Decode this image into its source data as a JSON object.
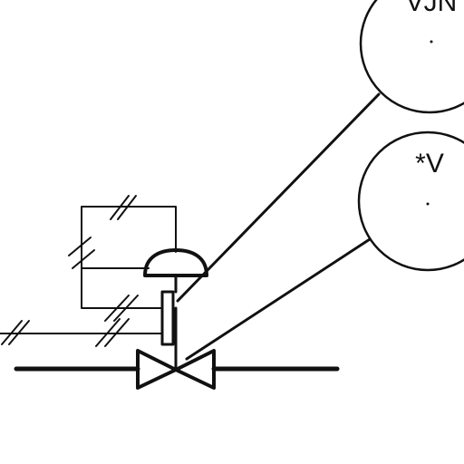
{
  "bubbles": {
    "top": {
      "label": "VJN"
    },
    "bottom": {
      "label": "*V"
    }
  },
  "colors": {
    "ink": "#111111",
    "background": "#ffffff"
  }
}
